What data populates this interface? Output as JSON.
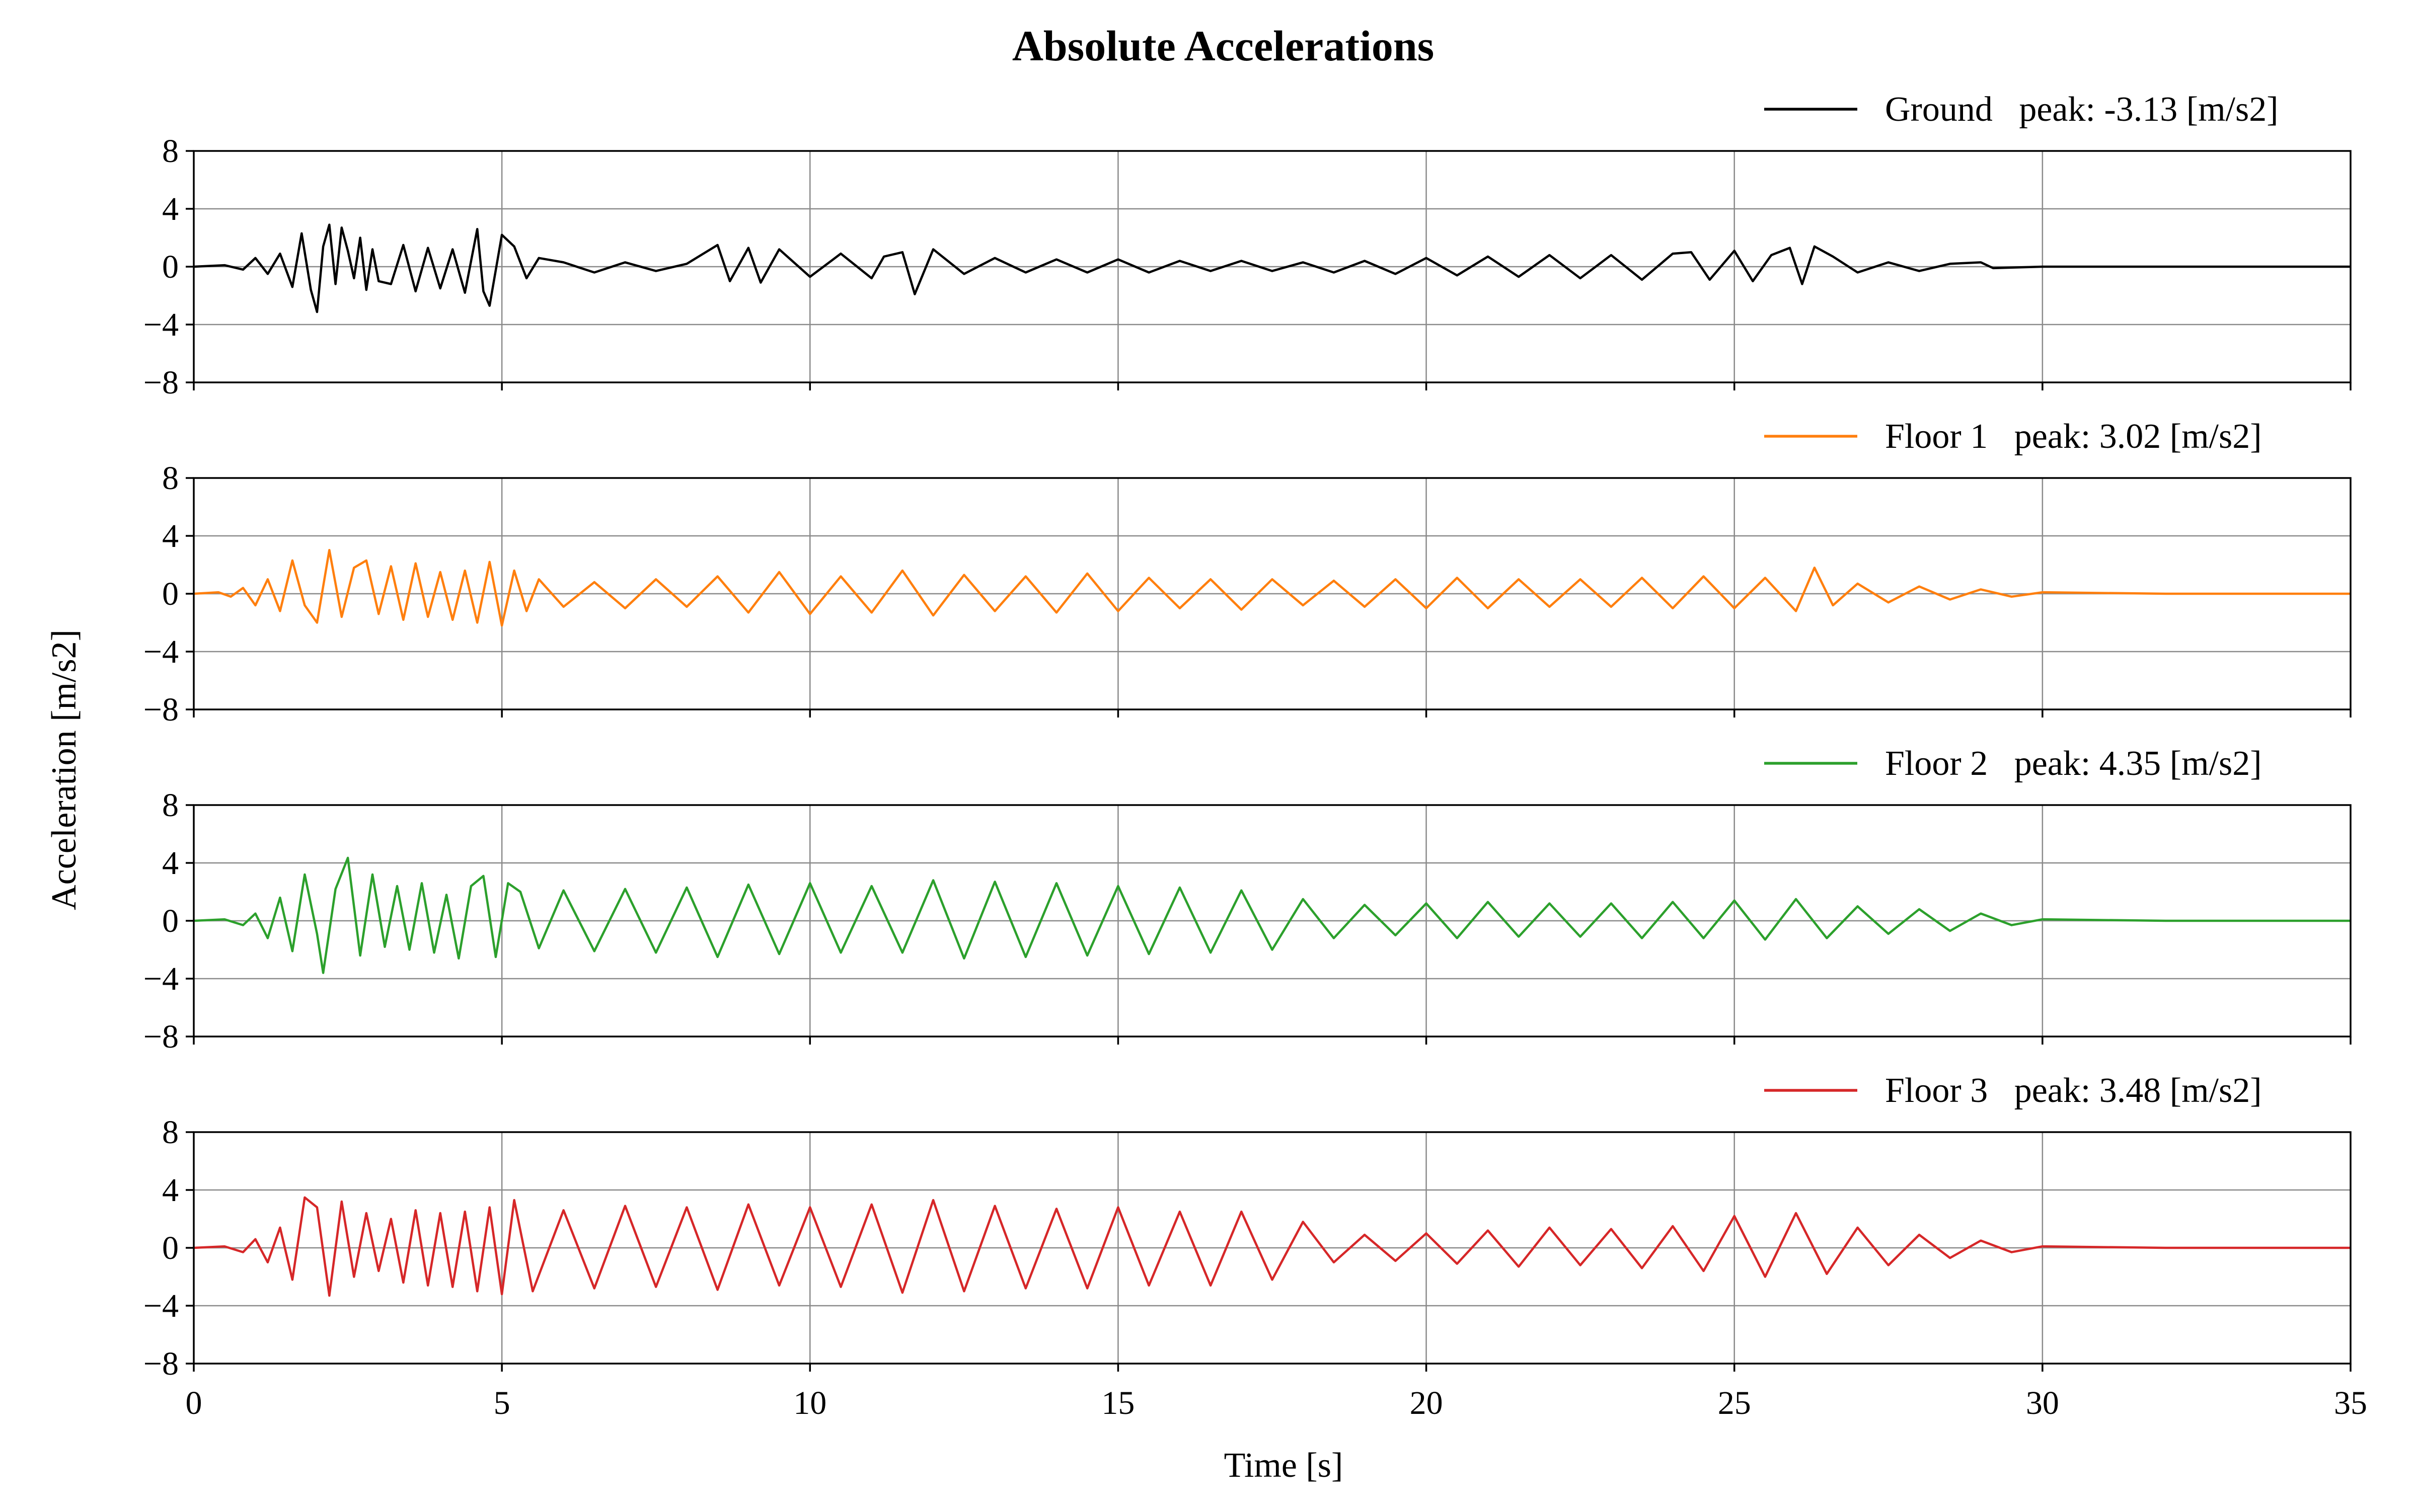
{
  "figure": {
    "title": "Absolute Accelerations",
    "xlabel": "Time [s]",
    "ylabel": "Acceleration [m/s2]"
  },
  "chart_data": {
    "type": "line",
    "title": "Absolute Accelerations",
    "xlabel": "Time [s]",
    "ylabel": "Acceleration [m/s2]",
    "xlim": [
      0,
      35
    ],
    "ylim": [
      -8,
      8
    ],
    "xticks": [
      0,
      5,
      10,
      15,
      20,
      25,
      30,
      35
    ],
    "yticks": [
      -8,
      -4,
      0,
      4,
      8
    ],
    "grid": true,
    "legend_position": "top-right",
    "subplots": [
      {
        "name": "Ground",
        "legend": "Ground   peak: -3.13 [m/s2]",
        "peak": -3.13,
        "color": "#000000",
        "x": [
          0,
          0.5,
          0.8,
          1.0,
          1.2,
          1.4,
          1.6,
          1.75,
          1.9,
          2.0,
          2.1,
          2.2,
          2.3,
          2.4,
          2.5,
          2.6,
          2.7,
          2.8,
          2.9,
          3.0,
          3.2,
          3.4,
          3.6,
          3.8,
          4.0,
          4.2,
          4.4,
          4.6,
          4.7,
          4.8,
          5.0,
          5.2,
          5.4,
          5.6,
          6.0,
          6.5,
          7.0,
          7.5,
          8.0,
          8.5,
          8.7,
          9.0,
          9.2,
          9.5,
          10.0,
          10.5,
          11.0,
          11.2,
          11.5,
          11.7,
          12.0,
          12.5,
          13.0,
          13.5,
          14.0,
          14.5,
          15.0,
          15.5,
          16.0,
          16.5,
          17.0,
          17.5,
          18.0,
          18.5,
          19.0,
          19.5,
          20.0,
          20.5,
          21.0,
          21.5,
          22.0,
          22.5,
          23.0,
          23.5,
          24.0,
          24.3,
          24.6,
          25.0,
          25.3,
          25.6,
          25.9,
          26.1,
          26.3,
          26.6,
          27.0,
          27.5,
          28.0,
          28.5,
          29.0,
          29.2,
          30.0,
          32.0,
          35.0
        ],
        "y": [
          0,
          0.1,
          -0.2,
          0.6,
          -0.5,
          0.9,
          -1.4,
          2.3,
          -1.6,
          -3.13,
          1.4,
          2.9,
          -1.2,
          2.7,
          1.1,
          -0.8,
          2.0,
          -1.6,
          1.2,
          -1.0,
          -1.2,
          1.5,
          -1.7,
          1.3,
          -1.5,
          1.2,
          -1.8,
          2.6,
          -1.7,
          -2.7,
          2.2,
          1.4,
          -0.8,
          0.6,
          0.3,
          -0.4,
          0.3,
          -0.3,
          0.2,
          1.5,
          -1.0,
          1.3,
          -1.1,
          1.2,
          -0.7,
          0.9,
          -0.8,
          0.7,
          1.0,
          -1.9,
          1.2,
          -0.5,
          0.6,
          -0.4,
          0.5,
          -0.4,
          0.5,
          -0.4,
          0.4,
          -0.3,
          0.4,
          -0.3,
          0.3,
          -0.4,
          0.4,
          -0.5,
          0.6,
          -0.6,
          0.7,
          -0.7,
          0.8,
          -0.8,
          0.8,
          -0.9,
          0.9,
          1.0,
          -0.9,
          1.1,
          -1.0,
          0.8,
          1.3,
          -1.2,
          1.4,
          0.7,
          -0.4,
          0.3,
          -0.3,
          0.2,
          0.3,
          -0.1,
          0,
          0,
          0
        ]
      },
      {
        "name": "Floor 1",
        "legend": "Floor 1   peak: 3.02 [m/s2]",
        "peak": 3.02,
        "color": "#ff7f0e",
        "x": [
          0,
          0.4,
          0.6,
          0.8,
          1.0,
          1.2,
          1.4,
          1.6,
          1.8,
          2.0,
          2.2,
          2.4,
          2.6,
          2.8,
          3.0,
          3.2,
          3.4,
          3.6,
          3.8,
          4.0,
          4.2,
          4.4,
          4.6,
          4.8,
          5.0,
          5.2,
          5.4,
          5.6,
          6.0,
          6.5,
          7.0,
          7.5,
          8.0,
          8.5,
          9.0,
          9.5,
          10.0,
          10.5,
          11.0,
          11.5,
          12.0,
          12.5,
          13.0,
          13.5,
          14.0,
          14.5,
          15.0,
          15.5,
          16.0,
          16.5,
          17.0,
          17.5,
          18.0,
          18.5,
          19.0,
          19.5,
          20.0,
          20.5,
          21.0,
          21.5,
          22.0,
          22.5,
          23.0,
          23.5,
          24.0,
          24.5,
          25.0,
          25.5,
          26.0,
          26.3,
          26.6,
          27.0,
          27.5,
          28.0,
          28.5,
          29.0,
          29.5,
          30.0,
          32.0,
          35.0
        ],
        "y": [
          0,
          0.1,
          -0.2,
          0.4,
          -0.8,
          1.0,
          -1.2,
          2.3,
          -0.8,
          -2.0,
          3.02,
          -1.6,
          1.8,
          2.3,
          -1.4,
          1.9,
          -1.8,
          2.1,
          -1.6,
          1.5,
          -1.8,
          1.6,
          -2.0,
          2.2,
          -2.2,
          1.6,
          -1.2,
          1.0,
          -0.9,
          0.8,
          -1.0,
          1.0,
          -0.9,
          1.2,
          -1.3,
          1.5,
          -1.4,
          1.2,
          -1.3,
          1.6,
          -1.5,
          1.3,
          -1.2,
          1.2,
          -1.3,
          1.4,
          -1.2,
          1.1,
          -1.0,
          1.0,
          -1.1,
          1.0,
          -0.8,
          0.9,
          -0.9,
          1.0,
          -1.0,
          1.1,
          -1.0,
          1.0,
          -0.9,
          1.0,
          -0.9,
          1.1,
          -1.0,
          1.2,
          -1.0,
          1.1,
          -1.2,
          1.8,
          -0.8,
          0.7,
          -0.6,
          0.5,
          -0.4,
          0.3,
          -0.2,
          0.1,
          0,
          0
        ]
      },
      {
        "name": "Floor 2",
        "legend": "Floor 2   peak: 4.35 [m/s2]",
        "peak": 4.35,
        "color": "#2ca02c",
        "x": [
          0,
          0.5,
          0.8,
          1.0,
          1.2,
          1.4,
          1.6,
          1.8,
          2.0,
          2.1,
          2.3,
          2.5,
          2.7,
          2.9,
          3.1,
          3.3,
          3.5,
          3.7,
          3.9,
          4.1,
          4.3,
          4.5,
          4.7,
          4.9,
          5.1,
          5.3,
          5.6,
          6.0,
          6.5,
          7.0,
          7.5,
          8.0,
          8.5,
          9.0,
          9.5,
          10.0,
          10.5,
          11.0,
          11.5,
          12.0,
          12.5,
          13.0,
          13.5,
          14.0,
          14.5,
          15.0,
          15.5,
          16.0,
          16.5,
          17.0,
          17.5,
          18.0,
          18.5,
          19.0,
          19.5,
          20.0,
          20.5,
          21.0,
          21.5,
          22.0,
          22.5,
          23.0,
          23.5,
          24.0,
          24.5,
          25.0,
          25.5,
          26.0,
          26.5,
          27.0,
          27.5,
          28.0,
          28.5,
          29.0,
          29.5,
          30.0,
          32.0,
          35.0
        ],
        "y": [
          0,
          0.1,
          -0.3,
          0.5,
          -1.2,
          1.6,
          -2.1,
          3.2,
          -0.9,
          -3.6,
          2.2,
          4.35,
          -2.4,
          3.2,
          -1.8,
          2.4,
          -2.0,
          2.6,
          -2.2,
          1.8,
          -2.6,
          2.4,
          3.1,
          -2.5,
          2.6,
          2.0,
          -1.9,
          2.1,
          -2.1,
          2.2,
          -2.2,
          2.3,
          -2.5,
          2.5,
          -2.3,
          2.6,
          -2.2,
          2.4,
          -2.2,
          2.8,
          -2.6,
          2.7,
          -2.5,
          2.6,
          -2.4,
          2.4,
          -2.3,
          2.3,
          -2.2,
          2.1,
          -2.0,
          1.5,
          -1.2,
          1.1,
          -1.0,
          1.2,
          -1.2,
          1.3,
          -1.1,
          1.2,
          -1.1,
          1.2,
          -1.2,
          1.3,
          -1.2,
          1.4,
          -1.3,
          1.5,
          -1.2,
          1.0,
          -0.9,
          0.8,
          -0.7,
          0.5,
          -0.3,
          0.1,
          0,
          0
        ]
      },
      {
        "name": "Floor 3",
        "legend": "Floor 3   peak: 3.48 [m/s2]",
        "peak": 3.48,
        "color": "#d62728",
        "x": [
          0,
          0.5,
          0.8,
          1.0,
          1.2,
          1.4,
          1.6,
          1.8,
          2.0,
          2.2,
          2.4,
          2.6,
          2.8,
          3.0,
          3.2,
          3.4,
          3.6,
          3.8,
          4.0,
          4.2,
          4.4,
          4.6,
          4.8,
          5.0,
          5.2,
          5.5,
          6.0,
          6.5,
          7.0,
          7.5,
          8.0,
          8.5,
          9.0,
          9.5,
          10.0,
          10.5,
          11.0,
          11.5,
          12.0,
          12.5,
          13.0,
          13.5,
          14.0,
          14.5,
          15.0,
          15.5,
          16.0,
          16.5,
          17.0,
          17.5,
          18.0,
          18.5,
          19.0,
          19.5,
          20.0,
          20.5,
          21.0,
          21.5,
          22.0,
          22.5,
          23.0,
          23.5,
          24.0,
          24.5,
          25.0,
          25.5,
          26.0,
          26.5,
          27.0,
          27.5,
          28.0,
          28.5,
          29.0,
          29.5,
          30.0,
          32.0,
          35.0
        ],
        "y": [
          0,
          0.1,
          -0.3,
          0.6,
          -1.0,
          1.4,
          -2.2,
          3.48,
          2.8,
          -3.3,
          3.2,
          -2.0,
          2.4,
          -1.6,
          2.0,
          -2.4,
          2.6,
          -2.6,
          2.4,
          -2.7,
          2.5,
          -3.0,
          2.8,
          -3.2,
          3.3,
          -3.0,
          2.6,
          -2.8,
          2.9,
          -2.7,
          2.8,
          -2.9,
          3.0,
          -2.6,
          2.8,
          -2.7,
          3.0,
          -3.1,
          3.3,
          -3.0,
          2.9,
          -2.8,
          2.7,
          -2.8,
          2.8,
          -2.6,
          2.5,
          -2.6,
          2.5,
          -2.2,
          1.8,
          -1.0,
          0.9,
          -0.9,
          1.0,
          -1.1,
          1.2,
          -1.3,
          1.4,
          -1.2,
          1.3,
          -1.4,
          1.5,
          -1.6,
          2.2,
          -2.0,
          2.4,
          -1.8,
          1.4,
          -1.2,
          0.9,
          -0.7,
          0.5,
          -0.3,
          0.1,
          0,
          0
        ]
      }
    ]
  }
}
